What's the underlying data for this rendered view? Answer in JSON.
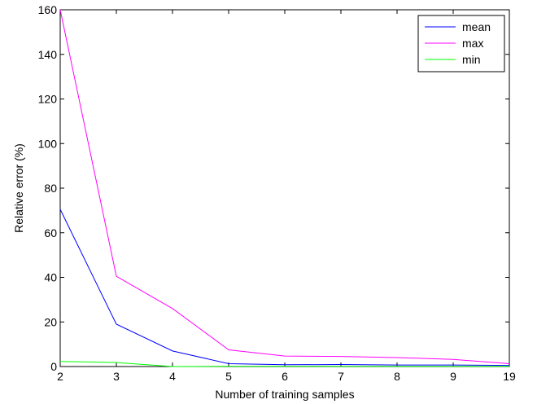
{
  "chart_data": {
    "type": "line",
    "categories": [
      "2",
      "3",
      "4",
      "5",
      "6",
      "7",
      "8",
      "9",
      "19"
    ],
    "series": [
      {
        "name": "mean",
        "color": "#0000ff",
        "values": [
          70.5,
          19,
          7,
          1.3,
          0.8,
          0.9,
          0.7,
          0.7,
          0.5
        ]
      },
      {
        "name": "max",
        "color": "#ff00ff",
        "values": [
          160,
          40.5,
          26,
          7.5,
          4.7,
          4.5,
          4,
          3.2,
          1.3
        ]
      },
      {
        "name": "min",
        "color": "#00ff00",
        "values": [
          2.3,
          1.8,
          0,
          0.1,
          0.1,
          0.1,
          0.1,
          0.1,
          0.1
        ]
      }
    ],
    "xlabel": "Number of training samples",
    "ylabel": "Relative error (%)",
    "ylim": [
      0,
      160
    ],
    "yticks": [
      0,
      20,
      40,
      60,
      80,
      100,
      120,
      140,
      160
    ],
    "grid": false,
    "legend_position": "top-right"
  }
}
